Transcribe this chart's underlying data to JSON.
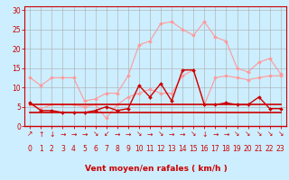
{
  "x": [
    0,
    1,
    2,
    3,
    4,
    5,
    6,
    7,
    8,
    9,
    10,
    11,
    12,
    13,
    14,
    15,
    16,
    17,
    18,
    19,
    20,
    21,
    22,
    23
  ],
  "series": [
    {
      "name": "rafales_light",
      "color": "#ff9999",
      "linewidth": 0.8,
      "marker": "D",
      "markersize": 2.0,
      "values": [
        12.5,
        10.5,
        12.5,
        12.5,
        12.5,
        6.5,
        7.0,
        8.5,
        8.5,
        13.0,
        21.0,
        22.0,
        26.5,
        27.0,
        25.0,
        23.5,
        27.0,
        23.0,
        22.0,
        15.0,
        14.0,
        16.5,
        17.5,
        13.5
      ]
    },
    {
      "name": "vent_light",
      "color": "#ff9999",
      "linewidth": 0.8,
      "marker": "D",
      "markersize": 2.0,
      "values": [
        5.5,
        4.5,
        5.5,
        5.5,
        5.5,
        5.0,
        5.5,
        2.0,
        5.5,
        7.5,
        8.5,
        9.5,
        8.5,
        8.5,
        13.0,
        14.5,
        5.5,
        12.5,
        13.0,
        12.5,
        12.0,
        12.5,
        13.0,
        13.0
      ]
    },
    {
      "name": "vent_moyen_dark",
      "color": "#cc0000",
      "linewidth": 1.0,
      "marker": "D",
      "markersize": 2.0,
      "values": [
        6.0,
        4.0,
        4.0,
        3.5,
        3.5,
        3.5,
        4.0,
        5.0,
        4.0,
        4.5,
        10.5,
        7.5,
        11.0,
        6.5,
        14.5,
        14.5,
        5.5,
        5.5,
        6.0,
        5.5,
        5.5,
        7.5,
        4.5,
        4.5
      ]
    },
    {
      "name": "min_dark",
      "color": "#cc0000",
      "linewidth": 1.2,
      "marker": null,
      "markersize": 0,
      "values": [
        3.5,
        3.5,
        3.5,
        3.5,
        3.5,
        3.5,
        3.5,
        3.5,
        3.5,
        3.5,
        3.5,
        3.5,
        3.5,
        3.5,
        3.5,
        3.5,
        3.5,
        3.5,
        3.5,
        3.5,
        3.5,
        3.5,
        3.5,
        3.5
      ]
    },
    {
      "name": "max_dark",
      "color": "#cc0000",
      "linewidth": 1.2,
      "marker": null,
      "markersize": 0,
      "values": [
        5.5,
        5.5,
        5.5,
        5.5,
        5.5,
        5.5,
        5.5,
        5.5,
        5.5,
        5.5,
        5.5,
        5.5,
        5.5,
        5.5,
        5.5,
        5.5,
        5.5,
        5.5,
        5.5,
        5.5,
        5.5,
        5.5,
        5.5,
        5.5
      ]
    }
  ],
  "arrows": [
    "↗",
    "↑",
    "↓",
    "→",
    "→",
    "→",
    "↘",
    "↙",
    "→",
    "→",
    "↘",
    "→",
    "↘",
    "→",
    "→",
    "↘",
    "↓",
    "→",
    "→",
    "↘",
    "↘",
    "↘",
    "↘",
    "↘"
  ],
  "xlabel": "Vent moyen/en rafales ( km/h )",
  "xticks": [
    0,
    1,
    2,
    3,
    4,
    5,
    6,
    7,
    8,
    9,
    10,
    11,
    12,
    13,
    14,
    15,
    16,
    17,
    18,
    19,
    20,
    21,
    22,
    23
  ],
  "yticks": [
    0,
    5,
    10,
    15,
    20,
    25,
    30
  ],
  "ylim": [
    0,
    31
  ],
  "xlim": [
    -0.5,
    23.5
  ],
  "bg_color": "#cceeff",
  "grid_color": "#aaaaaa",
  "axis_color": "#cc0000",
  "label_color": "#cc0000",
  "tick_color": "#cc0000",
  "xlabel_fontsize": 6.5,
  "tick_fontsize": 5.5,
  "arrow_fontsize": 5.5
}
